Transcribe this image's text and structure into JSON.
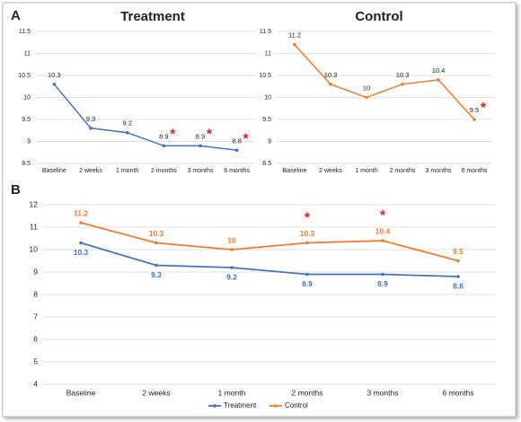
{
  "chart_data": [
    {
      "type": "line",
      "panel": "A",
      "title": "Treatment",
      "categories": [
        "Baseline",
        "2 weeks",
        "1 month",
        "2 months",
        "3 months",
        "6 months"
      ],
      "series": [
        {
          "name": "Treatment",
          "color": "#4472c4",
          "values": [
            10.3,
            9.3,
            9.2,
            8.9,
            8.9,
            8.8
          ],
          "label_position": "above"
        }
      ],
      "ylim": [
        8.5,
        11.5
      ],
      "yticks": [
        8.5,
        9,
        9.5,
        10,
        10.5,
        11,
        11.5
      ],
      "grid": true,
      "significance_marker": "*",
      "significance_color": "#e02020",
      "significant": [
        false,
        false,
        false,
        true,
        true,
        true
      ]
    },
    {
      "type": "line",
      "title": "Control",
      "categories": [
        "Baseline",
        "2 weeks",
        "1 month",
        "2 months",
        "3 months",
        "6 months"
      ],
      "series": [
        {
          "name": "Control",
          "color": "#ed7d31",
          "values": [
            11.2,
            10.3,
            10,
            10.3,
            10.4,
            9.5
          ],
          "label_position": "above"
        }
      ],
      "ylim": [
        8.5,
        11.5
      ],
      "yticks": [
        8.5,
        9,
        9.5,
        10,
        10.5,
        11,
        11.5
      ],
      "grid": true,
      "significance_marker": "*",
      "significance_color": "#e02020",
      "significant": [
        false,
        false,
        false,
        false,
        false,
        true
      ]
    },
    {
      "type": "line",
      "panel": "B",
      "categories": [
        "Baseline",
        "2 weeks",
        "1 month",
        "2 months",
        "3 months",
        "6 months"
      ],
      "series": [
        {
          "name": "Treatment",
          "color": "#4472c4",
          "values": [
            10.3,
            9.3,
            9.2,
            8.9,
            8.9,
            8.8
          ],
          "label_position": "below"
        },
        {
          "name": "Control",
          "color": "#ed7d31",
          "values": [
            11.2,
            10.3,
            10,
            10.3,
            10.4,
            9.5
          ],
          "label_position": "above"
        }
      ],
      "ylim": [
        4,
        12
      ],
      "yticks": [
        4,
        5,
        6,
        7,
        8,
        9,
        10,
        11,
        12
      ],
      "grid": true,
      "legend": "bottom",
      "significance_marker": "*",
      "significance_color": "#e02020",
      "significant": [
        false,
        false,
        false,
        true,
        true,
        false
      ]
    }
  ]
}
